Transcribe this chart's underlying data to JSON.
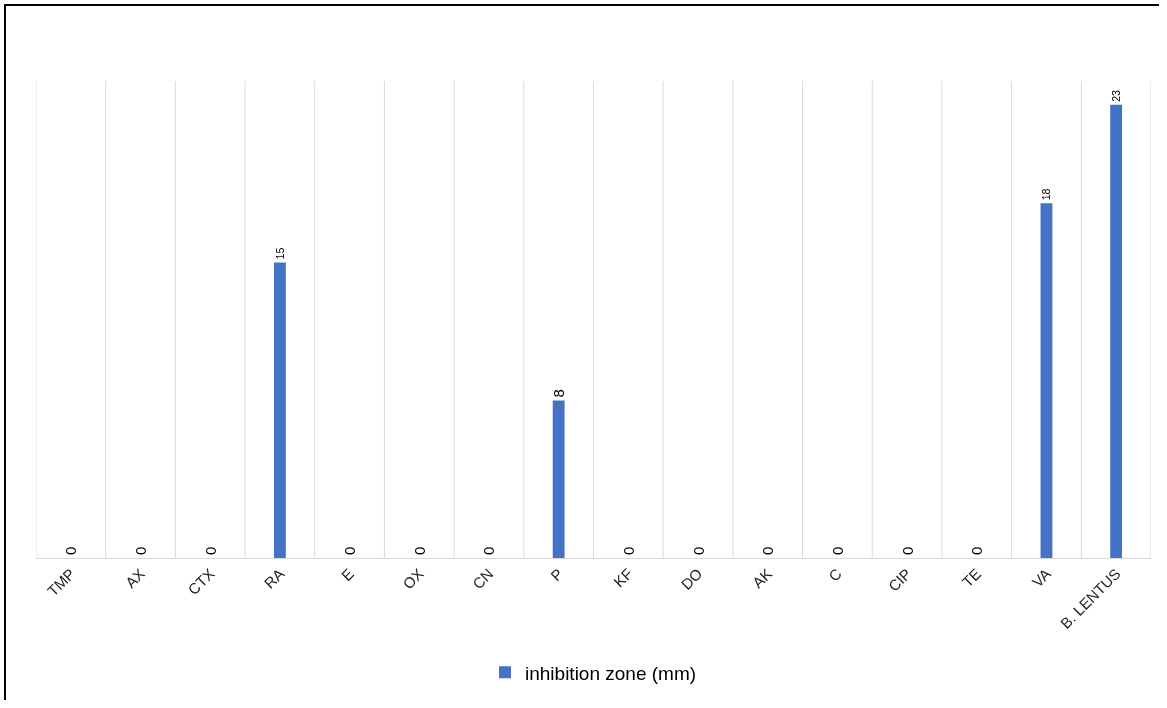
{
  "chart_data": {
    "type": "bar",
    "categories": [
      "TMP",
      "AX",
      "CTX",
      "RA",
      "E",
      "OX",
      "CN",
      "P",
      "KF",
      "DO",
      "AK",
      "C",
      "CIP",
      "TE",
      "VA",
      "B. LENTUS"
    ],
    "series": [
      {
        "name": "inhibition zone (mm)",
        "color": "#4472c4",
        "values": [
          0,
          0,
          0,
          15,
          0,
          0,
          0,
          8,
          0,
          0,
          0,
          0,
          0,
          0,
          18,
          23
        ]
      }
    ],
    "data_labels": true,
    "grid": "x",
    "legend": "bottom",
    "tick_labels": "x"
  }
}
